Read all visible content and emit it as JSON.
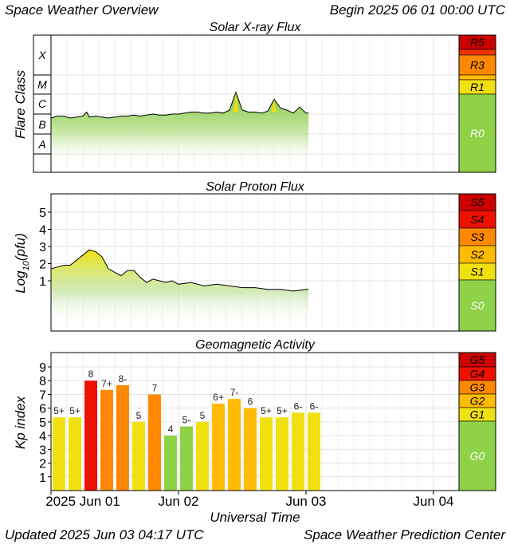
{
  "header": {
    "title": "Space Weather Overview",
    "begin_label": "Begin",
    "begin_value": "2025 06 01 00:00 UTC"
  },
  "footer": {
    "updated_label": "Updated",
    "updated_value": "2025 Jun 03 04:17 UTC",
    "source": "Space Weather Prediction Center",
    "xlabel": "Universal Time"
  },
  "time_axis": {
    "ticks": [
      "2025 Jun 01",
      "Jun 02",
      "Jun 03",
      "Jun 04"
    ],
    "tick_days": [
      0,
      1,
      2,
      3
    ],
    "range_days": [
      0,
      3.2
    ]
  },
  "chart_data": [
    {
      "type": "area",
      "title": "Solar X-ray Flux",
      "ylabel": "Flare Class",
      "class_labels": [
        "X",
        "M",
        "C",
        "B",
        "A"
      ],
      "scale_labels": [
        "R5",
        "R3",
        "R1",
        "R0"
      ],
      "scale_colors": {
        "R5": "#cc0000",
        "R4": "#ee3300",
        "R3": "#ff8800",
        "R2": "#ffbb00",
        "R1": "#f0e010",
        "R0": "#8fd147"
      },
      "x_days": [
        0.0,
        0.05,
        0.1,
        0.15,
        0.2,
        0.25,
        0.28,
        0.3,
        0.35,
        0.4,
        0.45,
        0.5,
        0.55,
        0.6,
        0.65,
        0.7,
        0.75,
        0.8,
        0.85,
        0.9,
        0.95,
        1.0,
        1.05,
        1.1,
        1.15,
        1.2,
        1.25,
        1.3,
        1.35,
        1.4,
        1.45,
        1.5,
        1.55,
        1.6,
        1.65,
        1.7,
        1.75,
        1.8,
        1.85,
        1.9,
        1.95,
        2.0,
        2.02
      ],
      "y_class": [
        2.3,
        2.4,
        2.4,
        2.3,
        2.35,
        2.4,
        2.6,
        2.35,
        2.4,
        2.35,
        2.3,
        2.35,
        2.4,
        2.4,
        2.45,
        2.4,
        2.45,
        2.5,
        2.45,
        2.45,
        2.5,
        2.5,
        2.55,
        2.6,
        2.6,
        2.55,
        2.55,
        2.6,
        2.55,
        2.7,
        3.6,
        2.7,
        2.6,
        2.6,
        2.55,
        2.65,
        3.25,
        2.8,
        2.7,
        2.55,
        2.85,
        2.55,
        2.55
      ]
    },
    {
      "type": "area",
      "title": "Solar Proton Flux",
      "ylabel_main": "Log",
      "ylabel_sub": "10",
      "ylabel_tail": "(pfu)",
      "ytick_labels": [
        "5",
        "4",
        "3",
        "2",
        "1"
      ],
      "scale_labels": [
        "S5",
        "S4",
        "S3",
        "S2",
        "S1",
        "S0"
      ],
      "scale_colors": {
        "S5": "#cc0000",
        "S4": "#ee1100",
        "S3": "#ff8800",
        "S2": "#ffbb00",
        "S1": "#f0e010",
        "S0": "#8fd147"
      },
      "x_days": [
        0.0,
        0.05,
        0.1,
        0.15,
        0.2,
        0.25,
        0.3,
        0.35,
        0.4,
        0.45,
        0.5,
        0.55,
        0.6,
        0.65,
        0.7,
        0.75,
        0.8,
        0.85,
        0.9,
        0.95,
        1.0,
        1.1,
        1.2,
        1.3,
        1.4,
        1.5,
        1.6,
        1.7,
        1.8,
        1.9,
        2.0,
        2.02
      ],
      "y_log": [
        1.7,
        1.8,
        1.9,
        1.9,
        2.2,
        2.5,
        2.8,
        2.7,
        2.4,
        1.7,
        1.5,
        1.3,
        1.6,
        1.6,
        1.2,
        0.9,
        1.1,
        1.0,
        0.9,
        1.0,
        0.8,
        0.9,
        0.7,
        0.8,
        0.7,
        0.6,
        0.6,
        0.5,
        0.5,
        0.4,
        0.5,
        0.5
      ]
    },
    {
      "type": "bar",
      "title": "Geomagnetic Activity",
      "ylabel": "Kp index",
      "ytick_labels": [
        "9",
        "8",
        "7",
        "6",
        "5",
        "4",
        "3",
        "2",
        "1"
      ],
      "scale_labels": [
        "G5",
        "G4",
        "G3",
        "G2",
        "G1",
        "G0"
      ],
      "scale_colors": {
        "G5": "#cc0000",
        "G4": "#ee1100",
        "G3": "#ff8800",
        "G2": "#ffbb00",
        "G1": "#f0e010",
        "G0": "#8fd147"
      },
      "ylim": [
        0,
        9.5
      ],
      "labels": [
        "5+",
        "5+",
        "8",
        "7+",
        "8-",
        "5",
        "7",
        "4",
        "5-",
        "5",
        "6+",
        "7-",
        "6",
        "5+",
        "5+",
        "6-",
        "6-"
      ],
      "values": [
        5.33,
        5.33,
        8.0,
        7.33,
        7.67,
        5.0,
        7.0,
        4.0,
        4.67,
        5.0,
        6.33,
        6.67,
        6.0,
        5.33,
        5.33,
        5.67,
        5.67
      ],
      "colors": [
        "#f0e010",
        "#f0e010",
        "#ee1100",
        "#ff8800",
        "#ff8800",
        "#f0e010",
        "#ff8800",
        "#8fd147",
        "#8fd147",
        "#f0e010",
        "#ffbb00",
        "#ffbb00",
        "#ffbb00",
        "#f0e010",
        "#f0e010",
        "#f0e010",
        "#f0e010"
      ]
    }
  ]
}
